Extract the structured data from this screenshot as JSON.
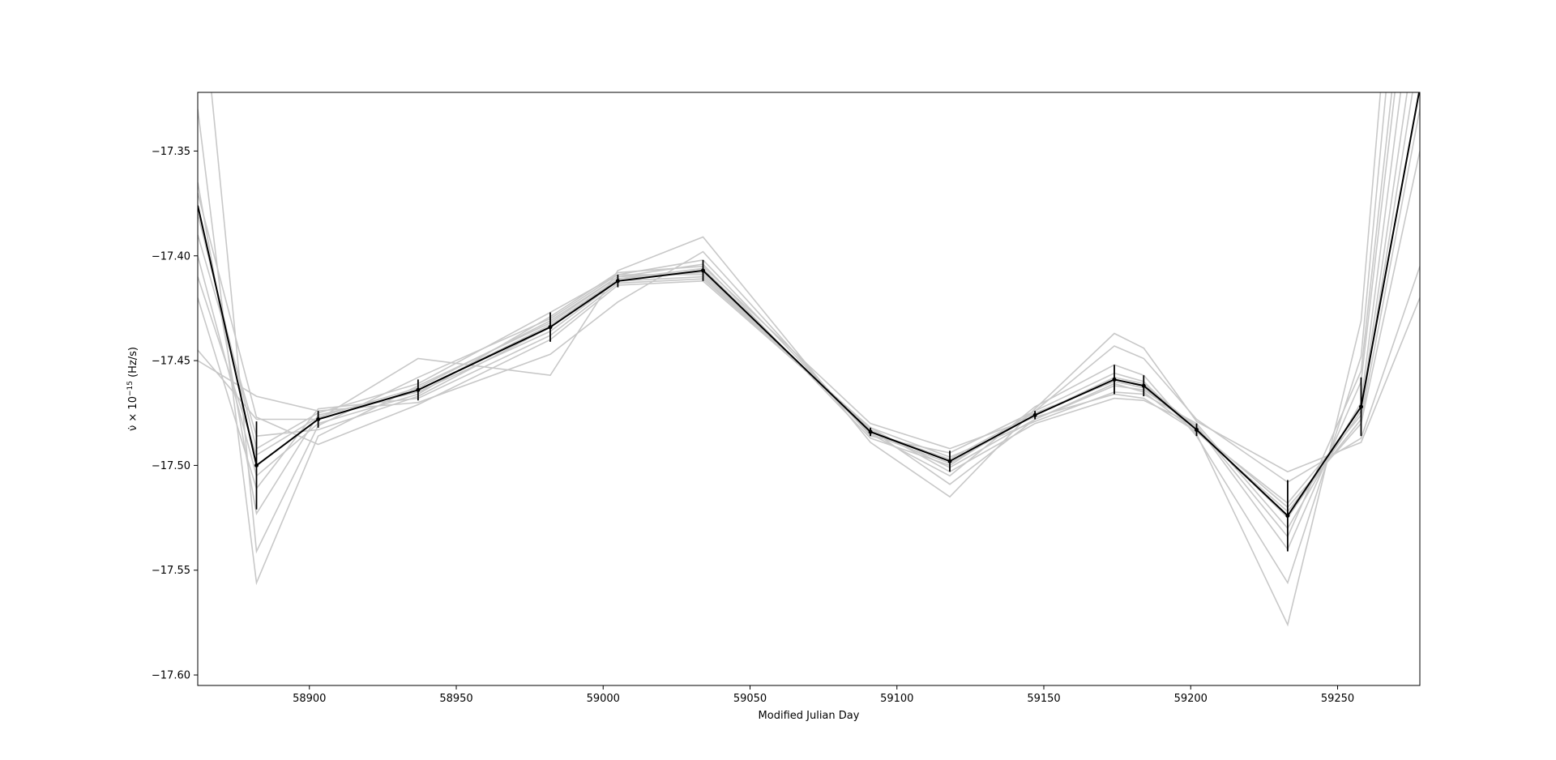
{
  "chart_data": {
    "type": "line",
    "title": "",
    "xlabel": "Modified Julian Day",
    "ylabel": {
      "pre": "ν̇ × 10",
      "sup": "−15",
      "post": " (Hz/s)"
    },
    "xlim": [
      58862,
      59278
    ],
    "ylim": [
      -17.605,
      -17.322
    ],
    "xticks": [
      58900,
      58950,
      59000,
      59050,
      59100,
      59150,
      59200,
      59250
    ],
    "xtick_labels": [
      "58900",
      "58950",
      "59000",
      "59050",
      "59100",
      "59150",
      "59200",
      "59250"
    ],
    "yticks": [
      -17.35,
      -17.4,
      -17.45,
      -17.5,
      -17.55,
      -17.6
    ],
    "ytick_labels": [
      "−17.35",
      "−17.40",
      "−17.45",
      "−17.50",
      "−17.55",
      "−17.60"
    ],
    "grid": false,
    "legend": "none",
    "colors": {
      "main": "#000000",
      "realizations": "#c8c8c8",
      "frame": "#000000"
    },
    "x": [
      58862,
      58882,
      58903,
      58937,
      58982,
      59005,
      59034,
      59091,
      59118,
      59147,
      59174,
      59184,
      59202,
      59233,
      59258,
      59278
    ],
    "series": [
      {
        "values": [
          -17.376,
          -17.5,
          -17.478,
          -17.464,
          -17.433,
          -17.411,
          -17.407,
          -17.484,
          -17.498,
          -17.476,
          -17.459,
          -17.462,
          -17.483,
          -17.524,
          -17.472,
          -17.32
        ]
      },
      {
        "values": [
          -17.33,
          -17.556,
          -17.486,
          -17.462,
          -17.432,
          -17.41,
          -17.404,
          -17.487,
          -17.5,
          -17.474,
          -17.456,
          -17.46,
          -17.485,
          -17.576,
          -17.431,
          -17.1
        ]
      },
      {
        "values": [
          -17.255,
          -17.541,
          -17.481,
          -17.458,
          -17.43,
          -17.409,
          -17.402,
          -17.485,
          -17.505,
          -17.472,
          -17.452,
          -17.457,
          -17.486,
          -17.556,
          -17.448,
          -17.15
        ]
      },
      {
        "values": [
          -17.365,
          -17.523,
          -17.476,
          -17.465,
          -17.436,
          -17.412,
          -17.41,
          -17.483,
          -17.509,
          -17.478,
          -17.462,
          -17.464,
          -17.481,
          -17.534,
          -17.455,
          -17.2
        ]
      },
      {
        "values": [
          -17.42,
          -17.511,
          -17.473,
          -17.468,
          -17.438,
          -17.413,
          -17.411,
          -17.482,
          -17.496,
          -17.479,
          -17.465,
          -17.466,
          -17.48,
          -17.53,
          -17.47,
          -17.25
        ]
      },
      {
        "values": [
          -17.445,
          -17.478,
          -17.478,
          -17.449,
          -17.457,
          -17.407,
          -17.391,
          -17.489,
          -17.515,
          -17.473,
          -17.437,
          -17.444,
          -17.479,
          -17.503,
          -17.489,
          -17.42
        ]
      },
      {
        "values": [
          -17.45,
          -17.467,
          -17.474,
          -17.47,
          -17.447,
          -17.422,
          -17.398,
          -17.486,
          -17.494,
          -17.474,
          -17.443,
          -17.449,
          -17.478,
          -17.508,
          -17.487,
          -17.405
        ]
      },
      {
        "values": [
          -17.4,
          -17.505,
          -17.48,
          -17.466,
          -17.429,
          -17.408,
          -17.405,
          -17.48,
          -17.492,
          -17.477,
          -17.466,
          -17.468,
          -17.484,
          -17.518,
          -17.476,
          -17.3
        ]
      },
      {
        "values": [
          -17.41,
          -17.495,
          -17.477,
          -17.463,
          -17.431,
          -17.41,
          -17.408,
          -17.484,
          -17.497,
          -17.475,
          -17.46,
          -17.463,
          -17.483,
          -17.52,
          -17.48,
          -17.35
        ]
      },
      {
        "values": [
          -17.39,
          -17.486,
          -17.483,
          -17.467,
          -17.434,
          -17.411,
          -17.406,
          -17.485,
          -17.499,
          -17.476,
          -17.458,
          -17.461,
          -17.482,
          -17.525,
          -17.474,
          -17.28
        ]
      },
      {
        "values": [
          -17.38,
          -17.492,
          -17.475,
          -17.461,
          -17.427,
          -17.409,
          -17.409,
          -17.483,
          -17.501,
          -17.478,
          -17.461,
          -17.465,
          -17.484,
          -17.522,
          -17.478,
          -17.33
        ]
      },
      {
        "values": [
          -17.37,
          -17.477,
          -17.49,
          -17.471,
          -17.44,
          -17.414,
          -17.412,
          -17.482,
          -17.503,
          -17.48,
          -17.468,
          -17.469,
          -17.481,
          -17.54,
          -17.46,
          -17.22
        ]
      }
    ],
    "main_series": {
      "values": [
        -17.376,
        -17.5,
        -17.478,
        -17.464,
        -17.434,
        -17.412,
        -17.407,
        -17.484,
        -17.498,
        -17.476,
        -17.459,
        -17.462,
        -17.483,
        -17.524,
        -17.472,
        -17.32
      ],
      "errors": [
        null,
        0.021,
        0.004,
        0.005,
        0.007,
        0.003,
        0.005,
        0.002,
        0.005,
        0.002,
        0.007,
        0.005,
        0.003,
        0.017,
        0.014,
        null
      ]
    }
  }
}
